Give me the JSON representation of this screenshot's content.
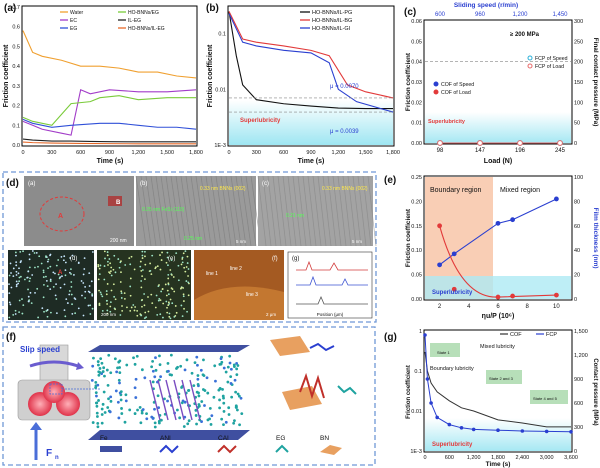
{
  "panels": {
    "a": {
      "label": "(a)",
      "ylabel": "Friction coefficient",
      "xlabel": "Time (s)",
      "xticks": [
        "0",
        "300",
        "600",
        "900",
        "1,200",
        "1,500",
        "1,800"
      ],
      "yticks": [
        "0.7",
        "0.6",
        "0.5",
        "0.4",
        "0.3",
        "0.2",
        "0.1",
        "0.0"
      ],
      "legend": [
        "Water",
        "EC",
        "EG",
        "HO-BNNs/EG",
        "IL-EG",
        "HO-BNNs/IL-EG"
      ]
    },
    "b": {
      "label": "(b)",
      "ylabel": "Friction coefficient",
      "xlabel": "Time (s)",
      "xticks": [
        "0",
        "300",
        "600",
        "900",
        "1,200",
        "1,500",
        "1,800"
      ],
      "yticks": [
        "0.1",
        "0.01",
        "1E-3"
      ],
      "legend": [
        "HO-BNNs/IL-PG",
        "HO-BNNs/IL-BG",
        "HO-BNNs/IL-GI"
      ],
      "annotations": [
        "μ = 0.0070",
        "μ = 0.0039",
        "Superlubricity"
      ]
    },
    "c": {
      "label": "(c)",
      "top_title": "Sliding speed (r/min)",
      "top_ticks": [
        "600",
        "960",
        "1,200",
        "1,450"
      ],
      "ylabel_left": "Friction coefficient",
      "ylabel_right": "Final contact pressure (MPa)",
      "xlabel": "Load (N)",
      "xticks": [
        "98",
        "147",
        "196",
        "245"
      ],
      "yticks_left": [
        "0.06",
        "0.05",
        "0.04",
        "0.03",
        "0.02",
        "0.01",
        "0.00"
      ],
      "yticks_right": [
        "300",
        "250",
        "200",
        "150",
        "100",
        "50",
        "0"
      ],
      "legend": [
        "FCP of Speed",
        "FCP of Load",
        "COF of Speed",
        "COF of Load"
      ],
      "annotations": [
        "≥ 200 MPa",
        "Superlubricity"
      ]
    },
    "d": {
      "label": "(d)",
      "sub": [
        "(a)",
        "(b)",
        "(c)",
        "(d)",
        "(e)",
        "(f)",
        "(g)"
      ],
      "lattice": [
        "0.33 nm BNNs (002)",
        "0.33 nm BNNs (002)",
        "0.25 nm",
        "0.25 nm FeSi (110)",
        "0.21 nm",
        "0.32 nm"
      ],
      "g_axis": {
        "xlabel": "Position (μm)",
        "ylabel": "Height (nm)",
        "lines": [
          "line 1",
          "line 2",
          "line 3"
        ]
      },
      "spots": [
        "A",
        "B"
      ],
      "scale": [
        "200 nm",
        "5 nm",
        "5 nm",
        "200 nm",
        "2 μm"
      ]
    },
    "e": {
      "label": "(e)",
      "ylabel_left": "Friction coefficient",
      "ylabel_right": "Film thickness (nm)",
      "xlabel": "ηu/P (10⁶)",
      "xticks": [
        "2",
        "4",
        "6",
        "8",
        "10"
      ],
      "yticks_left": [
        "0.25",
        "0.20",
        "0.15",
        "0.10",
        "0.05",
        "0.00"
      ],
      "yticks_right": [
        "100",
        "80",
        "60",
        "40",
        "20",
        "0"
      ],
      "regions": [
        "Boundary region",
        "Mixed region"
      ],
      "annotations": [
        "Superlubricity"
      ]
    },
    "f": {
      "label": "(f)",
      "texts": [
        "Slip speed",
        "F",
        "n"
      ],
      "legend": [
        "Fe",
        "ANI",
        "CAI",
        "EG",
        "BN"
      ]
    },
    "g": {
      "label": "(g)",
      "ylabel_left": "Friction coefficient",
      "ylabel_right": "Contact pressure (MPa)",
      "xlabel": "Time (s)",
      "xticks": [
        "0",
        "600",
        "1,200",
        "1,800",
        "2,400",
        "3,000",
        "3,600"
      ],
      "yticks_left": [
        "1",
        "0.1",
        "0.01",
        "1E-3"
      ],
      "yticks_right": [
        "1,500",
        "1,200",
        "900",
        "600",
        "300",
        "0"
      ],
      "legend": [
        "COF",
        "FCP"
      ],
      "regions": [
        "Boundary lubricity",
        "Mixed lubricity",
        "Superlubricity"
      ],
      "states": [
        "State 1",
        "State 2 and 3",
        "State 4 and 5"
      ]
    }
  },
  "colors": {
    "accent_blue": "#2a3fd0",
    "red": "#e23a3a",
    "orange_region": "#f6b48e",
    "cyan_region": "#aeeaf4",
    "dashed_frame": "#6f98d6"
  },
  "chart_data": [
    {
      "type": "line",
      "panel": "a",
      "xlim": [
        0,
        1800
      ],
      "ylim": [
        0,
        0.7
      ],
      "series": [
        {
          "name": "Water",
          "x": [
            0,
            100,
            200,
            400,
            600,
            800,
            1000,
            1200,
            1400,
            1600,
            1800
          ],
          "y": [
            0.58,
            0.47,
            0.45,
            0.43,
            0.4,
            0.4,
            0.39,
            0.37,
            0.37,
            0.35,
            0.34
          ]
        },
        {
          "name": "EC",
          "x": [
            0,
            100,
            200,
            400,
            500,
            600,
            700,
            900,
            1200,
            1500,
            1800
          ],
          "y": [
            0.12,
            0.1,
            0.08,
            0.06,
            0.05,
            0.28,
            0.26,
            0.28,
            0.27,
            0.27,
            0.28
          ]
        },
        {
          "name": "EG",
          "x": [
            0,
            100,
            300,
            500,
            800,
            1000,
            1200,
            1400,
            1600,
            1800
          ],
          "y": [
            0.13,
            0.11,
            0.09,
            0.1,
            0.11,
            0.11,
            0.1,
            0.09,
            0.09,
            0.08
          ]
        },
        {
          "name": "HO-BNNs/EG",
          "x": [
            0,
            100,
            300,
            500,
            700,
            800,
            1000,
            1200,
            1500,
            1800
          ],
          "y": [
            0.14,
            0.12,
            0.1,
            0.21,
            0.22,
            0.24,
            0.25,
            0.23,
            0.24,
            0.24
          ]
        },
        {
          "name": "IL-EG",
          "x": [
            0,
            100,
            300,
            500,
            700,
            900,
            1200,
            1500,
            1800
          ],
          "y": [
            0.03,
            0.025,
            0.02,
            0.02,
            0.018,
            0.017,
            0.016,
            0.016,
            0.016
          ]
        },
        {
          "name": "HO-BNNs/IL-EG",
          "x": [
            0,
            100,
            300,
            600,
            900,
            1200,
            1500,
            1800
          ],
          "y": [
            0.015,
            0.012,
            0.01,
            0.008,
            0.007,
            0.006,
            0.006,
            0.006
          ]
        }
      ]
    },
    {
      "type": "line",
      "panel": "b",
      "xlim": [
        0,
        1800
      ],
      "ylim": [
        0.001,
        0.3
      ],
      "series": [
        {
          "name": "HO-BNNs/IL-PG",
          "x": [
            0,
            80,
            150,
            300,
            600,
            900,
            1200,
            1500,
            1800
          ],
          "y": [
            0.25,
            0.04,
            0.012,
            0.0065,
            0.0055,
            0.005,
            0.0046,
            0.0045,
            0.0045
          ]
        },
        {
          "name": "HO-BNNs/IL-BG",
          "x": [
            0,
            150,
            300,
            600,
            900,
            1100,
            1300,
            1500,
            1800
          ],
          "y": [
            0.25,
            0.08,
            0.07,
            0.06,
            0.05,
            0.04,
            0.012,
            0.009,
            0.007
          ]
        },
        {
          "name": "HO-BNNs/IL-GI",
          "x": [
            0,
            150,
            300,
            600,
            900,
            1100,
            1200,
            1400,
            1800
          ],
          "y": [
            0.23,
            0.07,
            0.06,
            0.05,
            0.045,
            0.03,
            0.01,
            0.006,
            0.0039
          ]
        }
      ]
    },
    {
      "type": "line",
      "panel": "c",
      "categories": [
        "98",
        "147",
        "196",
        "245"
      ],
      "series": [
        {
          "name": "COF of Speed",
          "values": [
            0.033,
            0.03,
            0.004,
            0.008
          ]
        },
        {
          "name": "COF of Load",
          "values": [
            0.035,
            0.03,
            0.004,
            0.008
          ]
        },
        {
          "name": "FCP of Speed",
          "values": [
            245,
            225,
            218,
            222
          ]
        },
        {
          "name": "FCP of Load",
          "values": [
            20,
            25,
            30,
            50
          ]
        }
      ]
    },
    {
      "type": "line",
      "panel": "e",
      "series": [
        {
          "name": "Friction coefficient",
          "x": [
            2,
            3,
            6,
            7,
            10
          ],
          "y": [
            0.15,
            0.02,
            0.004,
            0.006,
            0.008
          ]
        },
        {
          "name": "Film thickness",
          "x": [
            2,
            3,
            6,
            7,
            10
          ],
          "y": [
            28,
            37,
            62,
            65,
            82
          ]
        }
      ]
    },
    {
      "type": "line",
      "panel": "g",
      "series": [
        {
          "name": "COF",
          "x": [
            0,
            60,
            150,
            300,
            600,
            900,
            1200,
            1800,
            2400,
            3000,
            3600
          ],
          "y": [
            0.3,
            0.1,
            0.05,
            0.03,
            0.018,
            0.012,
            0.01,
            0.006,
            0.005,
            0.004,
            0.004
          ]
        },
        {
          "name": "FCP",
          "x": [
            0,
            60,
            150,
            300,
            600,
            900,
            1200,
            1800,
            2400,
            3000,
            3600
          ],
          "y": [
            1450,
            900,
            600,
            420,
            330,
            290,
            270,
            260,
            250,
            245,
            240
          ]
        }
      ]
    }
  ]
}
